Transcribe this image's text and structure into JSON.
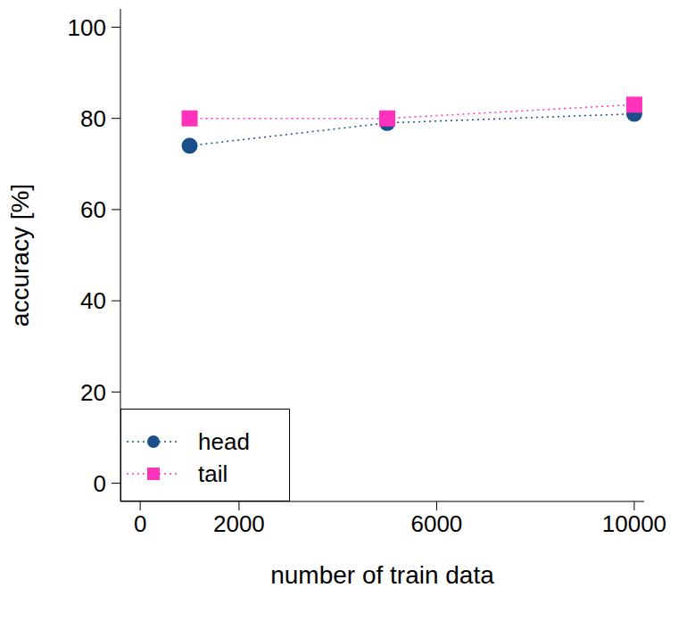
{
  "chart_data": {
    "type": "line",
    "x_label": "number of train data",
    "y_label": "accuracy [%]",
    "x": [
      1000,
      5000,
      10000
    ],
    "series": [
      {
        "name": "head",
        "color": "#1a4f8b",
        "marker": "circle",
        "line_style": "dotted",
        "values": [
          74,
          79,
          81
        ]
      },
      {
        "name": "tail",
        "color": "#ff33bb",
        "marker": "square",
        "line_style": "dotted",
        "values": [
          80,
          80,
          83
        ]
      }
    ],
    "xlim": [
      -400,
      10200
    ],
    "xticks": [
      0,
      2000,
      6000,
      10000
    ],
    "ylim": [
      -4,
      104
    ],
    "yticks": [
      0,
      20,
      40,
      60,
      80,
      100
    ],
    "legend": "lower left",
    "grid": false
  }
}
